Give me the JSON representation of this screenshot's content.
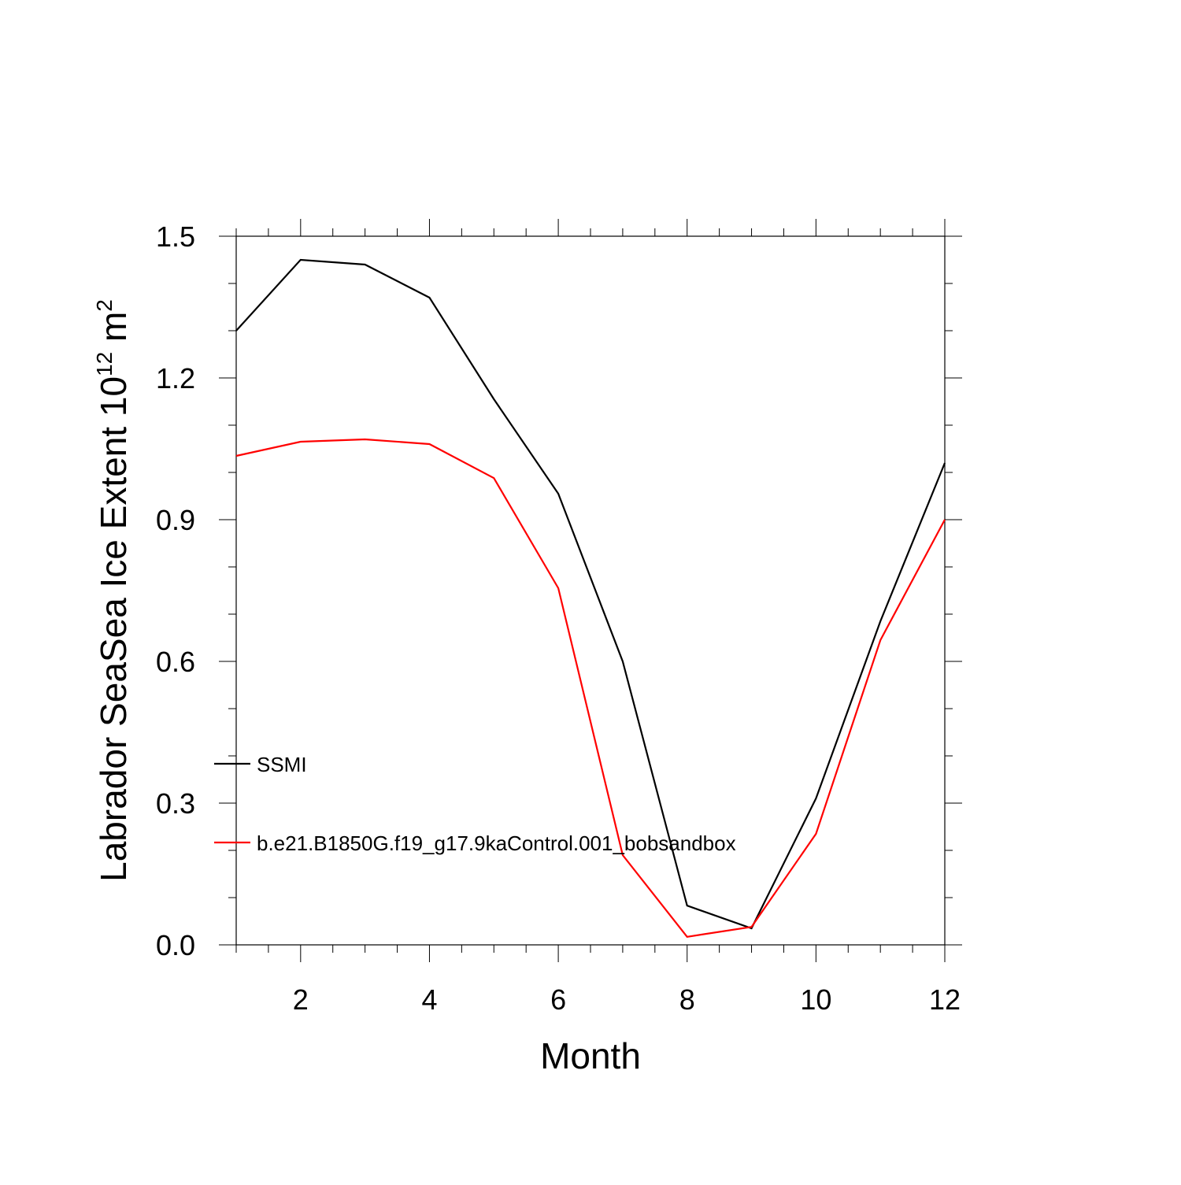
{
  "chart_data": {
    "type": "line",
    "title": "",
    "xlabel": "Month",
    "ylabel": {
      "main": "Labrador SeaSea Ice Extent 10",
      "exponent": "12",
      "unit_base": " m",
      "unit_exponent": "2"
    },
    "xlim": [
      1,
      12
    ],
    "ylim": [
      0.0,
      1.5
    ],
    "x_ticks": [
      2,
      4,
      6,
      8,
      10,
      12
    ],
    "x_tick_labels": [
      "2",
      "4",
      "6",
      "8",
      "10",
      "12"
    ],
    "y_ticks": [
      0.0,
      0.3,
      0.6,
      0.9,
      1.2,
      1.5
    ],
    "y_tick_labels": [
      "0.0",
      "0.3",
      "0.6",
      "0.9",
      "1.2",
      "1.5"
    ],
    "grid": false,
    "legend_position": "inside lower-left",
    "x": [
      1,
      2,
      3,
      4,
      5,
      6,
      7,
      8,
      9,
      10,
      11,
      12
    ],
    "series": [
      {
        "name": "SSMI",
        "color": "#000000",
        "values": [
          1.3,
          1.45,
          1.44,
          1.37,
          1.155,
          0.955,
          0.6,
          0.083,
          0.035,
          0.31,
          0.685,
          1.02
        ]
      },
      {
        "name": "b.e21.B1850G.f19_g17.9kaControl.001_bobsandbox",
        "color": "#ff0000",
        "values": [
          1.035,
          1.065,
          1.07,
          1.06,
          0.988,
          0.755,
          0.19,
          0.017,
          0.038,
          0.235,
          0.645,
          0.9
        ]
      }
    ]
  }
}
